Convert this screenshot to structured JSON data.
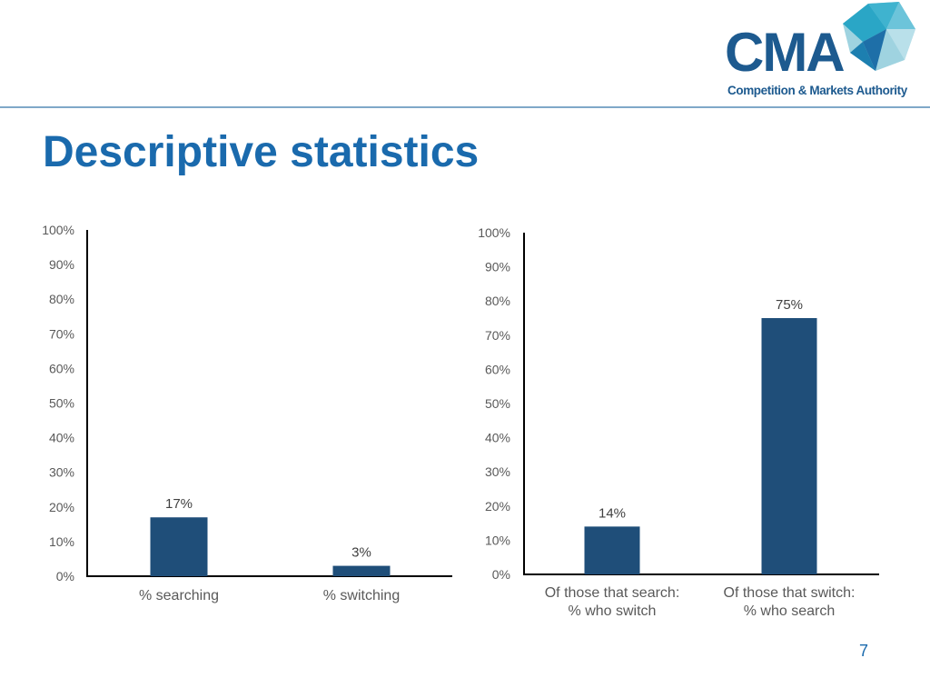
{
  "logo": {
    "abbrev": "CMA",
    "subtitle": "Competition & Markets Authority"
  },
  "title": "Descriptive statistics",
  "page_number": "7",
  "colors": {
    "bar": "#1f4e79",
    "title": "#1a6aad",
    "rule": "#7fa8c8"
  },
  "chart_data": [
    {
      "type": "bar",
      "categories": [
        "% searching",
        "% switching"
      ],
      "values": [
        17,
        3
      ],
      "data_labels": [
        "17%",
        "3%"
      ],
      "ylim": [
        0,
        100
      ],
      "yticks": [
        "0%",
        "10%",
        "20%",
        "30%",
        "40%",
        "50%",
        "60%",
        "70%",
        "80%",
        "90%",
        "100%"
      ],
      "grid": false
    },
    {
      "type": "bar",
      "categories": [
        [
          "Of those that search:",
          "% who switch"
        ],
        [
          "Of those that switch:",
          "% who search"
        ]
      ],
      "values": [
        14,
        75
      ],
      "data_labels": [
        "14%",
        "75%"
      ],
      "ylim": [
        0,
        100
      ],
      "yticks": [
        "0%",
        "10%",
        "20%",
        "30%",
        "40%",
        "50%",
        "60%",
        "70%",
        "80%",
        "90%",
        "100%"
      ],
      "grid": false
    }
  ]
}
